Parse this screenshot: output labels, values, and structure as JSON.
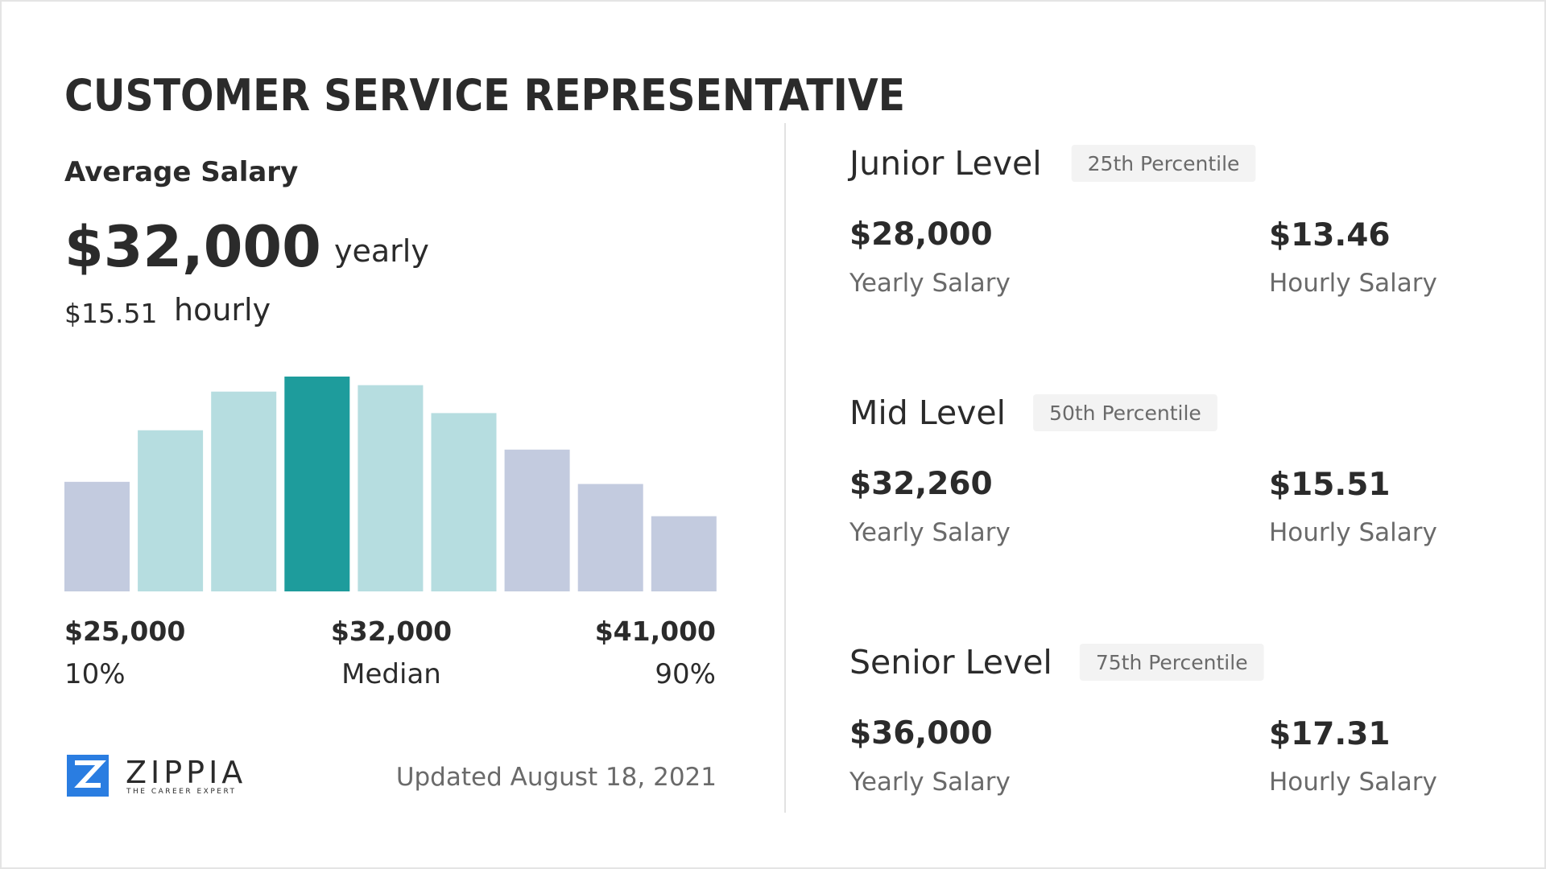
{
  "header": {
    "title": "CUSTOMER SERVICE REPRESENTATIVE"
  },
  "average": {
    "label": "Average Salary",
    "yearly_amount": "$32,000",
    "yearly_label": "yearly",
    "hourly_amount": "$15.51",
    "hourly_label": "hourly"
  },
  "chart_data": {
    "type": "bar",
    "values": [
      51,
      75,
      93,
      100,
      96,
      83,
      66,
      50,
      35
    ],
    "colors": [
      "#c3cbdf",
      "#b6dde0",
      "#b6dde0",
      "#1e9c9c",
      "#b6dde0",
      "#b6dde0",
      "#c3cbdf",
      "#c3cbdf",
      "#c3cbdf"
    ],
    "ylim": [
      0,
      100
    ]
  },
  "range": {
    "low": {
      "amount": "$25,000",
      "label": "10%"
    },
    "median": {
      "amount": "$32,000",
      "label": "Median"
    },
    "high": {
      "amount": "$41,000",
      "label": "90%"
    }
  },
  "footer": {
    "logo": "ZIPPIA",
    "tagline": "THE CAREER EXPERT",
    "updated": "Updated August 18, 2021"
  },
  "levels": [
    {
      "name": "Junior Level",
      "percentile": "25th Percentile",
      "yearly": "$28,000",
      "yearly_label": "Yearly Salary",
      "hourly": "$13.46",
      "hourly_label": "Hourly Salary"
    },
    {
      "name": "Mid Level",
      "percentile": "50th Percentile",
      "yearly": "$32,260",
      "yearly_label": "Yearly Salary",
      "hourly": "$15.51",
      "hourly_label": "Hourly Salary"
    },
    {
      "name": "Senior Level",
      "percentile": "75th Percentile",
      "yearly": "$36,000",
      "yearly_label": "Yearly Salary",
      "hourly": "$17.31",
      "hourly_label": "Hourly Salary"
    }
  ]
}
